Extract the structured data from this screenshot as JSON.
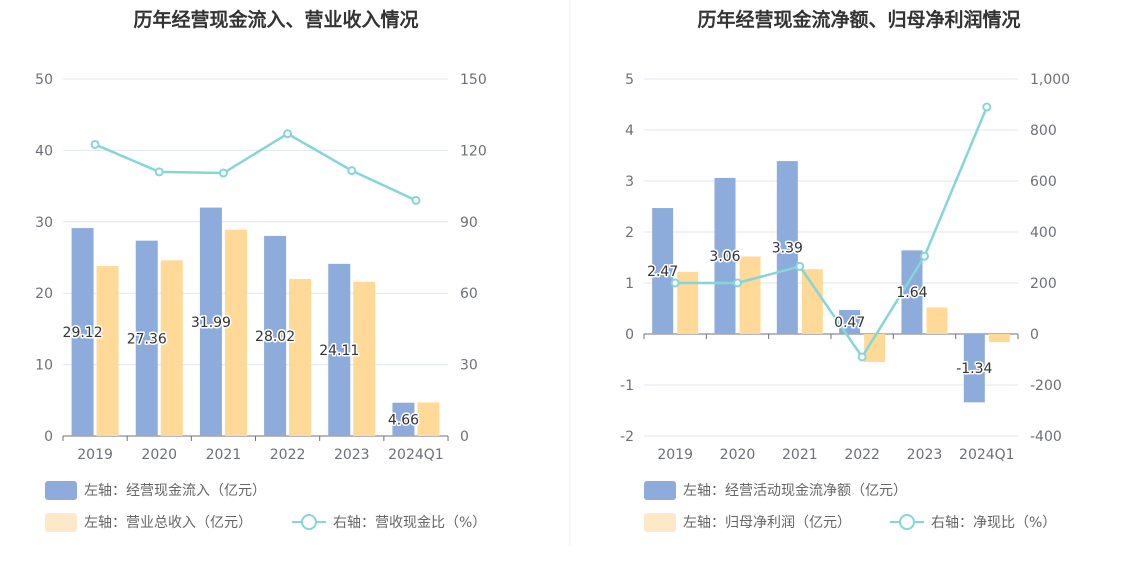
{
  "colors": {
    "bar_primary": "#8eacdb",
    "bar_secondary": "#fed997",
    "line": "#86d5d9",
    "legend_secondary": "#fde9c7",
    "grid": "#e0e6f1",
    "text_axis": "#6e7079"
  },
  "chart_data": [
    {
      "type": "bar",
      "title": "历年经营现金流入、营业收入情况",
      "categories": [
        "2019",
        "2020",
        "2021",
        "2022",
        "2023",
        "2024Q1"
      ],
      "left_axis": {
        "ylim": [
          0,
          50
        ],
        "ticks": [
          0,
          10,
          20,
          30,
          40,
          50
        ]
      },
      "right_axis": {
        "ylim": [
          0,
          150
        ],
        "ticks": [
          0,
          30,
          60,
          90,
          120,
          150
        ]
      },
      "grid": true,
      "legend_position": "bottom-left",
      "series": [
        {
          "name": "左轴：经营现金流入（亿元）",
          "type": "bar",
          "axis": "left",
          "values": [
            29.12,
            27.36,
            31.99,
            28.02,
            24.11,
            4.66
          ],
          "labels": [
            "29.12",
            "27.36",
            "31.99",
            "28.02",
            "24.11",
            "4.66"
          ]
        },
        {
          "name": "左轴：营业总收入（亿元）",
          "type": "bar",
          "axis": "left",
          "values": [
            23.8,
            24.6,
            28.9,
            22.0,
            21.6,
            4.7
          ]
        },
        {
          "name": "右轴：营收现金比（%）",
          "type": "line",
          "axis": "right",
          "values": [
            122.5,
            111.0,
            110.5,
            127.0,
            111.5,
            99.0
          ]
        }
      ]
    },
    {
      "type": "bar",
      "title": "历年经营现金流净额、归母净利润情况",
      "categories": [
        "2019",
        "2020",
        "2021",
        "2022",
        "2023",
        "2024Q1"
      ],
      "left_axis": {
        "ylim": [
          -2,
          5
        ],
        "ticks": [
          -2,
          -1,
          0,
          1,
          2,
          3,
          4,
          5
        ]
      },
      "right_axis": {
        "ylim": [
          -400,
          1000
        ],
        "ticks": [
          -400,
          -200,
          0,
          200,
          400,
          600,
          800,
          1000
        ],
        "tick_labels": [
          "-400",
          "-200",
          "0",
          "200",
          "400",
          "600",
          "800",
          "1,000"
        ]
      },
      "grid": true,
      "legend_position": "bottom-left",
      "series": [
        {
          "name": "左轴：经营活动现金流净额（亿元）",
          "type": "bar",
          "axis": "left",
          "values": [
            2.47,
            3.06,
            3.39,
            0.47,
            1.64,
            -1.34
          ],
          "labels": [
            "2.47",
            "3.06",
            "3.39",
            "0.47",
            "1.64",
            "-1.34"
          ]
        },
        {
          "name": "左轴：归母净利润（亿元）",
          "type": "bar",
          "axis": "left",
          "values": [
            1.22,
            1.52,
            1.27,
            -0.55,
            0.52,
            -0.16
          ]
        },
        {
          "name": "右轴：净现比（%）",
          "type": "line",
          "axis": "right",
          "values": [
            200,
            200,
            265,
            -90,
            305,
            890
          ]
        }
      ]
    }
  ]
}
